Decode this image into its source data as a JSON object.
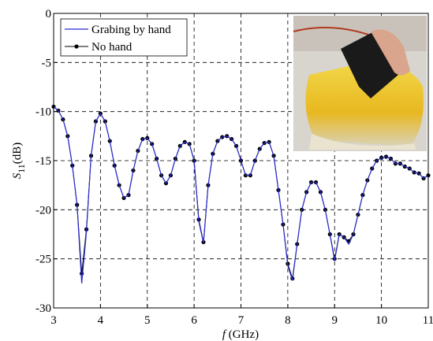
{
  "chart_data": {
    "type": "line",
    "x_label": {
      "symbol": "f",
      "unit": "(GHz)"
    },
    "y_label": {
      "symbol": "S",
      "subscript": "11",
      "unit": "(dB)"
    },
    "x": [
      3.0,
      3.1,
      3.2,
      3.3,
      3.4,
      3.5,
      3.6,
      3.7,
      3.8,
      3.9,
      4.0,
      4.1,
      4.2,
      4.3,
      4.4,
      4.5,
      4.6,
      4.7,
      4.8,
      4.9,
      5.0,
      5.1,
      5.2,
      5.3,
      5.4,
      5.5,
      5.6,
      5.7,
      5.8,
      5.9,
      6.0,
      6.1,
      6.2,
      6.3,
      6.4,
      6.5,
      6.6,
      6.7,
      6.8,
      6.9,
      7.0,
      7.1,
      7.2,
      7.3,
      7.4,
      7.5,
      7.6,
      7.7,
      7.8,
      7.9,
      8.0,
      8.1,
      8.2,
      8.3,
      8.4,
      8.5,
      8.6,
      8.7,
      8.8,
      8.9,
      9.0,
      9.1,
      9.2,
      9.3,
      9.4,
      9.5,
      9.6,
      9.7,
      9.8,
      9.9,
      10.0,
      10.1,
      10.2,
      10.3,
      10.4,
      10.5,
      10.6,
      10.7,
      10.8,
      10.9,
      11.0
    ],
    "series": [
      {
        "name": "Grabing by hand",
        "color": "#2b2bd0",
        "marker": false,
        "values": [
          -9.5,
          -9.9,
          -10.8,
          -12.5,
          -15.5,
          -19.5,
          -27.5,
          -22.3,
          -14.5,
          -11,
          -10.2,
          -11,
          -13,
          -15.5,
          -17.5,
          -18.8,
          -18.5,
          -16,
          -14,
          -12.8,
          -12.7,
          -13.3,
          -14.8,
          -16.5,
          -17.3,
          -16.5,
          -14.8,
          -13.5,
          -13.1,
          -13.3,
          -15,
          -21.2,
          -23.4,
          -17.5,
          -14.3,
          -13,
          -12.6,
          -12.5,
          -12.8,
          -13.5,
          -15,
          -16.5,
          -16.5,
          -15,
          -13.8,
          -13.2,
          -13.1,
          -14.5,
          -18,
          -21.5,
          -25.7,
          -27.2,
          -23.5,
          -20,
          -18.2,
          -17.2,
          -17.2,
          -18.2,
          -20,
          -22.5,
          -25.2,
          -22.5,
          -22.8,
          -23.5,
          -22.5,
          -20.5,
          -18.5,
          -17,
          -15.8,
          -15,
          -14.7,
          -14.6,
          -14.8,
          -15.3,
          -15.3,
          -15.6,
          -15.8,
          -16.2,
          -16.3,
          -16.8,
          -16.5
        ]
      },
      {
        "name": "No hand",
        "color": "#000000",
        "marker": true,
        "values": [
          -9.5,
          -9.9,
          -10.8,
          -12.5,
          -15.5,
          -19.5,
          -26.5,
          -22,
          -14.5,
          -11,
          -10.2,
          -11,
          -13,
          -15.5,
          -17.5,
          -18.8,
          -18.5,
          -16,
          -14,
          -12.8,
          -12.7,
          -13.3,
          -14.8,
          -16.5,
          -17.3,
          -16.5,
          -14.8,
          -13.5,
          -13.1,
          -13.3,
          -15,
          -21,
          -23.3,
          -17.5,
          -14.3,
          -13,
          -12.6,
          -12.5,
          -12.8,
          -13.5,
          -15,
          -16.5,
          -16.5,
          -15,
          -13.8,
          -13.2,
          -13.1,
          -14.5,
          -18,
          -21.5,
          -25.5,
          -27,
          -23.5,
          -20,
          -18.2,
          -17.2,
          -17.2,
          -18.2,
          -20,
          -22.5,
          -25,
          -22.5,
          -22.8,
          -23.2,
          -22.5,
          -20.5,
          -18.5,
          -17,
          -15.8,
          -15,
          -14.7,
          -14.6,
          -14.8,
          -15.3,
          -15.3,
          -15.6,
          -15.8,
          -16.2,
          -16.3,
          -16.8,
          -16.5
        ]
      }
    ],
    "xlim": [
      3,
      11
    ],
    "xticks": [
      3,
      4,
      5,
      6,
      7,
      8,
      9,
      10,
      11
    ],
    "ylim": [
      -30,
      0
    ],
    "yticks": [
      0,
      -5,
      -10,
      -15,
      -20,
      -25,
      -30
    ],
    "grid": true,
    "legend": "upper left"
  }
}
